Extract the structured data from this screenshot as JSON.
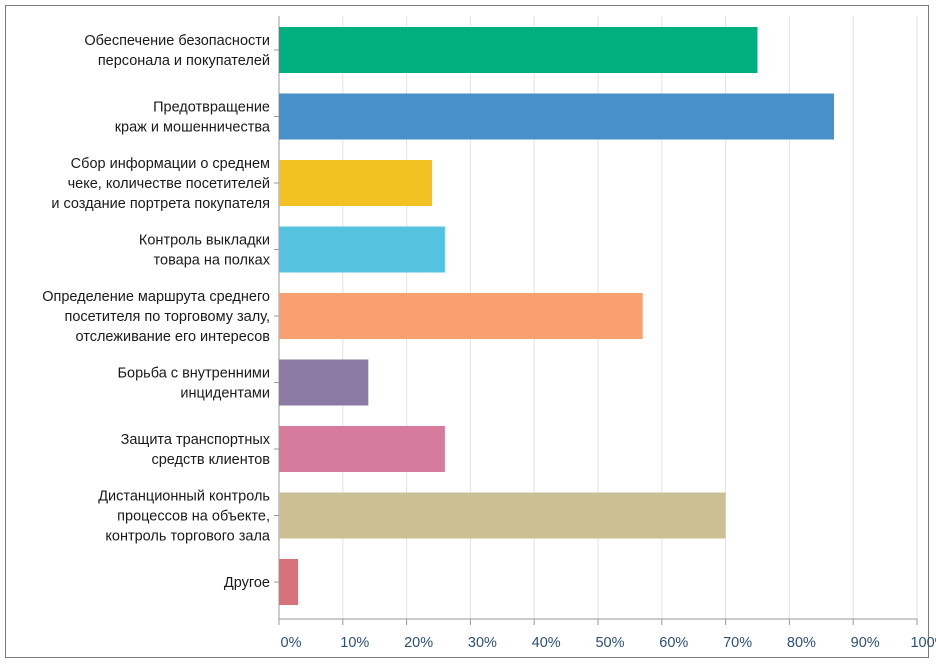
{
  "chart_data": {
    "type": "bar",
    "orientation": "horizontal",
    "categories": [
      [
        "Обеспечение безопасности",
        "персонала и покупателей"
      ],
      [
        "Предотвращение",
        "краж и мошенничества"
      ],
      [
        "Сбор информации о среднем",
        "чеке, количестве посетителей",
        "и создание портрета покупателя"
      ],
      [
        "Контроль выкладки",
        "товара на полках"
      ],
      [
        "Определение маршрута среднего",
        "посетителя по торговому залу,",
        "отслеживание его интересов"
      ],
      [
        "Борьба с внутренними",
        "инцидентами"
      ],
      [
        "Защита транспортных",
        "средств клиентов"
      ],
      [
        "Дистанционный контроль",
        "процессов на объекте,",
        "контроль торгового зала"
      ],
      [
        "Другое"
      ]
    ],
    "values": [
      75,
      87,
      24,
      26,
      57,
      14,
      26,
      70,
      3
    ],
    "colors": [
      "#00ae7e",
      "#4a90c8",
      "#f4c125",
      "#55c3e0",
      "#f9a070",
      "#8b7aa4",
      "#d67b9b",
      "#cbc094",
      "#d7727a"
    ],
    "xticks": [
      "0%",
      "10%",
      "20%",
      "30%",
      "40%",
      "50%",
      "60%",
      "70%",
      "80%",
      "90%",
      "100%"
    ],
    "xlim": [
      0,
      100
    ],
    "grid": true,
    "title": "",
    "xlabel": "",
    "ylabel": ""
  }
}
